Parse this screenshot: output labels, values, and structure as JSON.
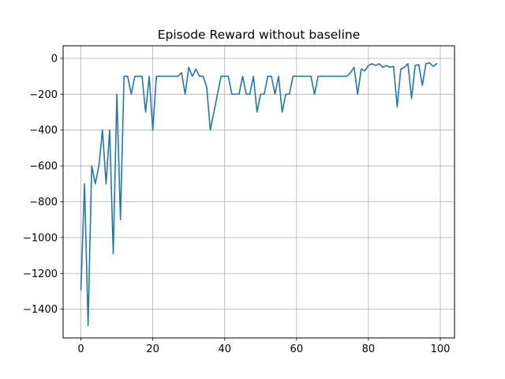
{
  "chart_data": {
    "type": "line",
    "title": "Episode Reward without baseline",
    "xlabel": "",
    "ylabel": "",
    "xlim": [
      -4.95,
      103.95
    ],
    "ylim": [
      -1560,
      70
    ],
    "grid": true,
    "x_ticks": [
      0,
      20,
      40,
      60,
      80,
      100
    ],
    "x_tick_labels": [
      "0",
      "20",
      "40",
      "60",
      "80",
      "100"
    ],
    "y_ticks": [
      0,
      -200,
      -400,
      -600,
      -800,
      -1000,
      -1200,
      -1400
    ],
    "y_tick_labels": [
      "0",
      "−200",
      "−400",
      "−600",
      "−800",
      "−1000",
      "−1200",
      "−1400"
    ],
    "series": [
      {
        "color": "#1f77b4",
        "values": [
          -1290,
          -700,
          -1490,
          -600,
          -700,
          -600,
          -400,
          -700,
          -400,
          -1090,
          -200,
          -900,
          -100,
          -100,
          -200,
          -100,
          -100,
          -100,
          -300,
          -100,
          -400,
          -100,
          -100,
          -100,
          -100,
          -100,
          -100,
          -100,
          -80,
          -200,
          -50,
          -100,
          -60,
          -100,
          -100,
          -160,
          -400,
          -300,
          -200,
          -100,
          -100,
          -100,
          -200,
          -200,
          -200,
          -100,
          -200,
          -200,
          -100,
          -300,
          -200,
          -200,
          -100,
          -100,
          -200,
          -100,
          -300,
          -200,
          -200,
          -100,
          -100,
          -100,
          -100,
          -100,
          -100,
          -200,
          -100,
          -100,
          -100,
          -100,
          -100,
          -100,
          -100,
          -100,
          -100,
          -80,
          -50,
          -200,
          -60,
          -70,
          -40,
          -30,
          -40,
          -30,
          -50,
          -40,
          -50,
          -45,
          -270,
          -60,
          -50,
          -30,
          -225,
          -40,
          -35,
          -150,
          -30,
          -25,
          -45,
          -30
        ]
      }
    ]
  }
}
